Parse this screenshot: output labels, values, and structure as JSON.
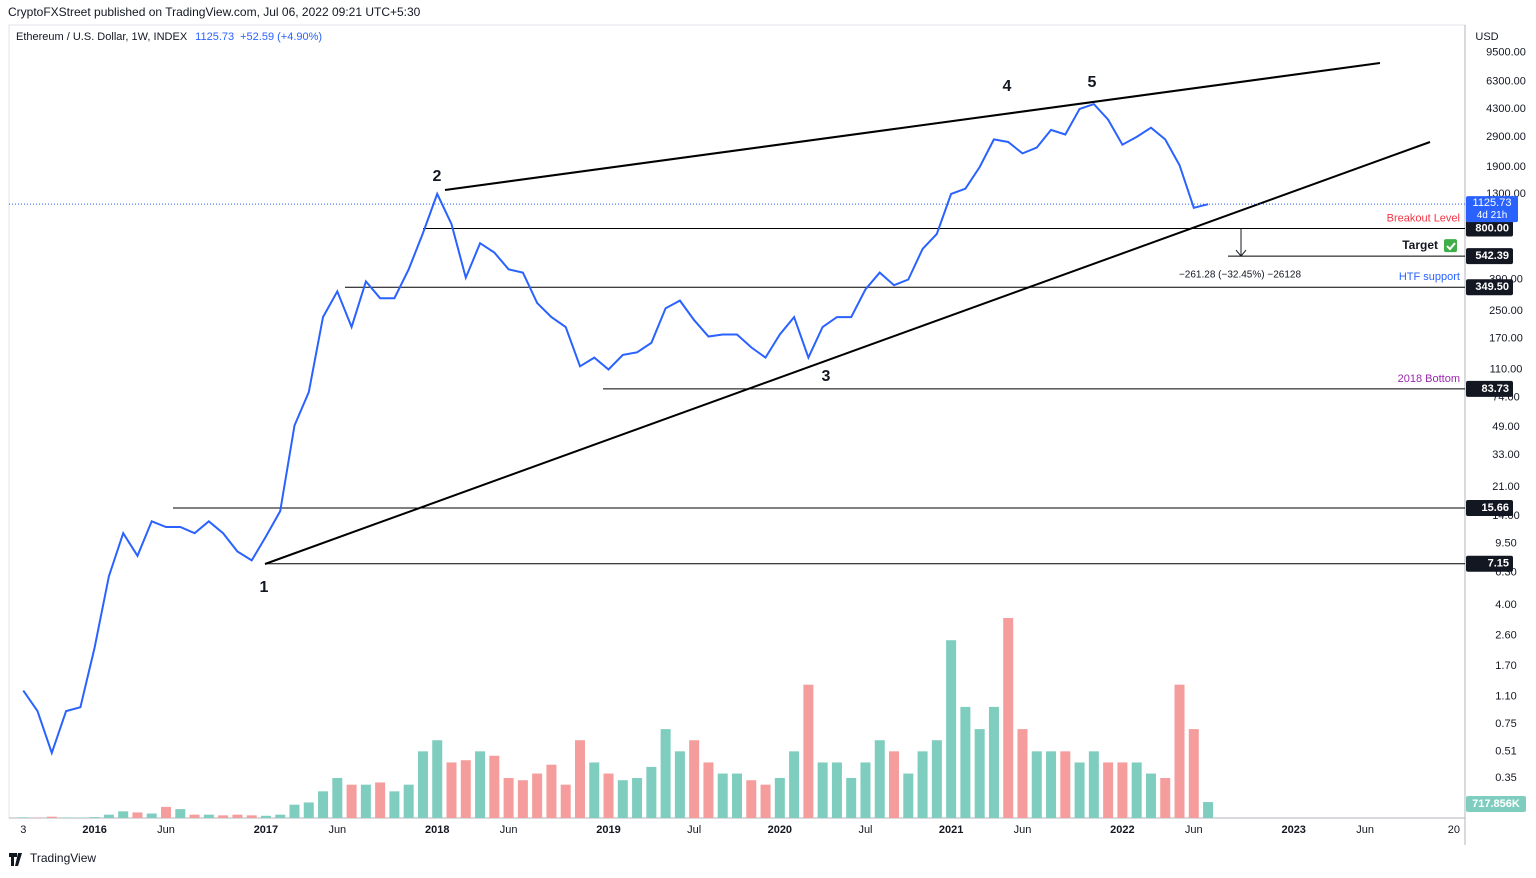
{
  "header": {
    "publisher": "CryptoFXStreet published on TradingView.com, Jul 06, 2022 09:21 UTC+5:30"
  },
  "chart_data": {
    "type": "line",
    "title": "Ethereum / U.S. Dollar, 1W, INDEX",
    "change": "+52.59 (+4.90%)",
    "currency": "USD",
    "countdown": "4d 21h",
    "color": "#2962ff",
    "log_scale": true,
    "grid": false,
    "x": [
      "2015-08",
      "2015-09",
      "2015-10",
      "2015-11",
      "2015-12",
      "2016-01",
      "2016-02",
      "2016-03",
      "2016-04",
      "2016-05",
      "2016-06",
      "2016-07",
      "2016-08",
      "2016-09",
      "2016-10",
      "2016-11",
      "2016-12",
      "2017-01",
      "2017-02",
      "2017-03",
      "2017-04",
      "2017-05",
      "2017-06",
      "2017-07",
      "2017-08",
      "2017-09",
      "2017-10",
      "2017-11",
      "2017-12",
      "2018-01",
      "2018-02",
      "2018-03",
      "2018-04",
      "2018-05",
      "2018-06",
      "2018-07",
      "2018-08",
      "2018-09",
      "2018-10",
      "2018-11",
      "2018-12",
      "2019-01",
      "2019-02",
      "2019-03",
      "2019-04",
      "2019-05",
      "2019-06",
      "2019-07",
      "2019-08",
      "2019-09",
      "2019-10",
      "2019-11",
      "2019-12",
      "2020-01",
      "2020-02",
      "2020-03",
      "2020-04",
      "2020-05",
      "2020-06",
      "2020-07",
      "2020-08",
      "2020-09",
      "2020-10",
      "2020-11",
      "2020-12",
      "2021-01",
      "2021-02",
      "2021-03",
      "2021-04",
      "2021-05",
      "2021-06",
      "2021-07",
      "2021-08",
      "2021-09",
      "2021-10",
      "2021-11",
      "2021-12",
      "2022-01",
      "2022-02",
      "2022-03",
      "2022-04",
      "2022-05",
      "2022-06",
      "2022-07"
    ],
    "values": [
      1.2,
      0.9,
      0.5,
      0.9,
      0.95,
      2.2,
      6,
      11,
      8,
      13,
      12,
      12,
      11,
      13,
      11,
      8.5,
      7.5,
      10.5,
      15,
      50,
      80,
      230,
      330,
      200,
      380,
      300,
      300,
      450,
      750,
      1300,
      850,
      400,
      650,
      570,
      450,
      430,
      280,
      230,
      200,
      115,
      130,
      110,
      135,
      140,
      160,
      260,
      290,
      220,
      175,
      180,
      180,
      150,
      130,
      180,
      230,
      130,
      200,
      230,
      230,
      340,
      430,
      360,
      390,
      600,
      740,
      1300,
      1400,
      1900,
      2800,
      2700,
      2300,
      2500,
      3200,
      3000,
      4300,
      4600,
      3700,
      2600,
      2900,
      3300,
      2800,
      1950,
      1070,
      1125.73
    ],
    "xlim": [
      "2015-07",
      "2024-01"
    ],
    "ylim": [
      0.2,
      14000
    ],
    "xticks": [
      {
        "value": "2015-08",
        "label": "3"
      },
      {
        "value": "2016-01",
        "label": "2016"
      },
      {
        "value": "2016-06",
        "label": "Jun"
      },
      {
        "value": "2017-01",
        "label": "2017"
      },
      {
        "value": "2017-06",
        "label": "Jun"
      },
      {
        "value": "2018-01",
        "label": "2018"
      },
      {
        "value": "2018-06",
        "label": "Jun"
      },
      {
        "value": "2019-01",
        "label": "2019"
      },
      {
        "value": "2019-07",
        "label": "Jul"
      },
      {
        "value": "2020-01",
        "label": "2020"
      },
      {
        "value": "2020-07",
        "label": "Jul"
      },
      {
        "value": "2021-01",
        "label": "2021"
      },
      {
        "value": "2021-06",
        "label": "Jun"
      },
      {
        "value": "2022-01",
        "label": "2022"
      },
      {
        "value": "2022-06",
        "label": "Jun"
      },
      {
        "value": "2023-01",
        "label": "2023"
      },
      {
        "value": "2023-06",
        "label": "Jun"
      },
      {
        "value": "2024-01",
        "label": "20"
      }
    ],
    "yticks": [
      {
        "value": 9500,
        "label": "9500.00"
      },
      {
        "value": 6300,
        "label": "6300.00"
      },
      {
        "value": 4300,
        "label": "4300.00"
      },
      {
        "value": 2900,
        "label": "2900.00"
      },
      {
        "value": 1900,
        "label": "1900.00"
      },
      {
        "value": 1300,
        "label": "1300.00"
      },
      {
        "value": 390,
        "label": "390.00"
      },
      {
        "value": 250,
        "label": "250.00"
      },
      {
        "value": 170,
        "label": "170.00"
      },
      {
        "value": 110,
        "label": "110.00"
      },
      {
        "value": 74,
        "label": "74.00"
      },
      {
        "value": 49,
        "label": "49.00"
      },
      {
        "value": 33,
        "label": "33.00"
      },
      {
        "value": 21,
        "label": "21.00"
      },
      {
        "value": 14,
        "label": "14.00"
      },
      {
        "value": 9.5,
        "label": "9.50"
      },
      {
        "value": 6.3,
        "label": "6.30"
      },
      {
        "value": 4,
        "label": "4.00"
      },
      {
        "value": 2.6,
        "label": "2.60"
      },
      {
        "value": 1.7,
        "label": "1.70"
      },
      {
        "value": 1.1,
        "label": "1.10"
      },
      {
        "value": 0.75,
        "label": "0.75"
      },
      {
        "value": 0.51,
        "label": "0.51"
      },
      {
        "value": 0.35,
        "label": "0.35"
      }
    ],
    "levels": [
      {
        "value": 800,
        "label": "800.00",
        "name": "Breakout Level",
        "color": "#f23645"
      },
      {
        "value": 542.39,
        "label": "542.39",
        "name": "Target",
        "color": "#131722"
      },
      {
        "value": 349.5,
        "label": "349.50",
        "name": "HTF support",
        "color": "#2962ff"
      },
      {
        "value": 83.73,
        "label": "83.73",
        "name": "2018 Bottom",
        "color": "#9c27b0"
      },
      {
        "value": 15.66,
        "label": "15.66"
      },
      {
        "value": 7.15,
        "label": "7.15"
      }
    ],
    "measure": "−261.28 (−32.45%) −26128",
    "wave_labels": [
      "1",
      "2",
      "3",
      "4",
      "5"
    ],
    "volume": {
      "values": [
        30000,
        20000,
        60000,
        25000,
        20000,
        40000,
        150000,
        300000,
        250000,
        200000,
        500000,
        400000,
        150000,
        150000,
        120000,
        150000,
        120000,
        100000,
        150000,
        600000,
        700000,
        1200000,
        1800000,
        1500000,
        1500000,
        1600000,
        1200000,
        1500000,
        3000000,
        3500000,
        2500000,
        2600000,
        3000000,
        2800000,
        1800000,
        1700000,
        2000000,
        2400000,
        1500000,
        3500000,
        2500000,
        2000000,
        1700000,
        1800000,
        2300000,
        4000000,
        3000000,
        3500000,
        2500000,
        2000000,
        2000000,
        1700000,
        1500000,
        1800000,
        3000000,
        6000000,
        2500000,
        2500000,
        1800000,
        2500000,
        3500000,
        3000000,
        2000000,
        3000000,
        3500000,
        8000000,
        5000000,
        4000000,
        5000000,
        9000000,
        4000000,
        3000000,
        3000000,
        3000000,
        2500000,
        3000000,
        2500000,
        2500000,
        2500000,
        2000000,
        1800000,
        6000000,
        4000000,
        717856
      ],
      "up_color": "#7fcdbf",
      "down_color": "#f59c9c",
      "last_label": "717.856K"
    }
  },
  "footer": {
    "brand": "TradingView"
  }
}
